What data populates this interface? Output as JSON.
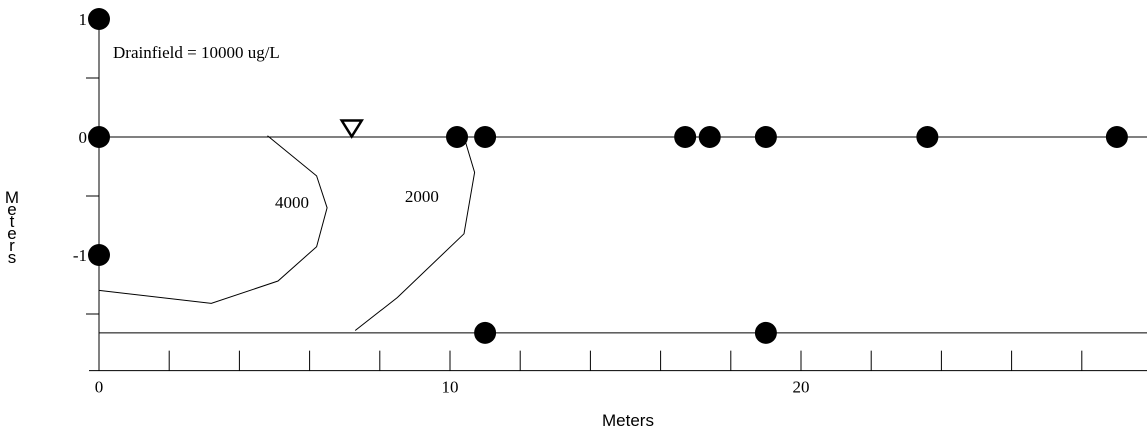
{
  "chart_data": {
    "type": "scatter",
    "xlabel": "Meters",
    "ylabel": "Meters",
    "x_ticks": [
      0,
      10,
      20
    ],
    "x_minor_step": 2,
    "y_ticks": [
      1,
      0,
      -1
    ],
    "y_minor_step": 0.5,
    "xlim": [
      0,
      29
    ],
    "ylim": [
      -1.98,
      1.0
    ],
    "grid": false,
    "annotation": "Drainfield = 10000 ug/L",
    "water_table_symbol": "∇",
    "water_table_position": {
      "x": 7.2,
      "y": 0.08
    },
    "reference_lines": [
      {
        "name": "ground-line",
        "y": 0
      },
      {
        "name": "bottom-line",
        "y": -1.66
      }
    ],
    "points": [
      {
        "x": 0,
        "y": 1
      },
      {
        "x": 0,
        "y": 0
      },
      {
        "x": 0,
        "y": -1
      },
      {
        "x": 10.2,
        "y": 0
      },
      {
        "x": 11.0,
        "y": 0
      },
      {
        "x": 16.7,
        "y": 0
      },
      {
        "x": 17.4,
        "y": 0
      },
      {
        "x": 19.0,
        "y": 0
      },
      {
        "x": 23.6,
        "y": 0
      },
      {
        "x": 29.0,
        "y": 0
      },
      {
        "x": 11.0,
        "y": -1.66
      },
      {
        "x": 19.0,
        "y": -1.66
      }
    ],
    "contours": [
      {
        "label": "4000",
        "label_at": {
          "x": 5.5,
          "y": -0.6
        },
        "points": [
          [
            4.8,
            0.01
          ],
          [
            6.2,
            -0.33
          ],
          [
            6.5,
            -0.6
          ],
          [
            6.2,
            -0.93
          ],
          [
            5.1,
            -1.22
          ],
          [
            3.2,
            -1.41
          ],
          [
            0,
            -1.3
          ]
        ]
      },
      {
        "label": "2000",
        "label_at": {
          "x": 9.2,
          "y": -0.55
        },
        "points": [
          [
            10.4,
            0.0
          ],
          [
            10.7,
            -0.3
          ],
          [
            10.4,
            -0.82
          ],
          [
            8.5,
            -1.36
          ],
          [
            7.3,
            -1.64
          ]
        ]
      }
    ],
    "colors": {
      "marks": "#000000",
      "background": "#ffffff"
    }
  }
}
